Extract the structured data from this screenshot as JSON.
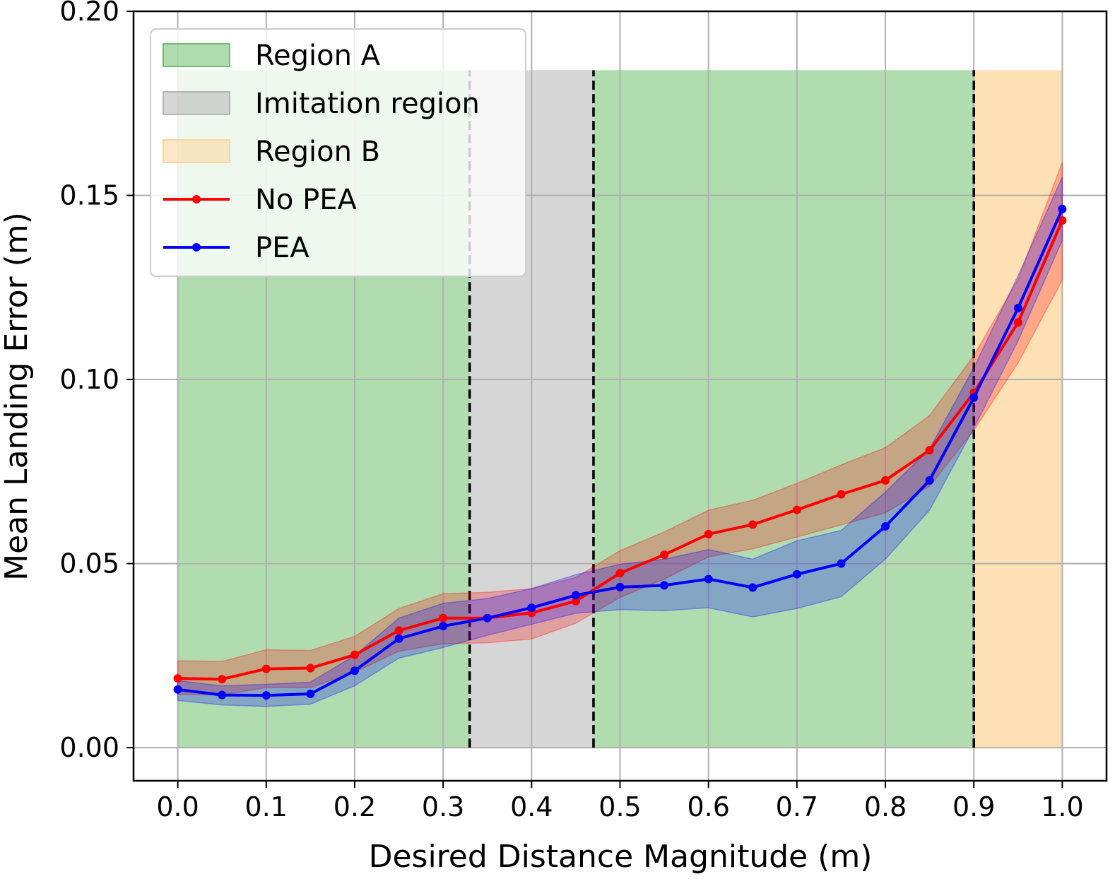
{
  "chart_data": {
    "type": "line",
    "title": "",
    "xlabel": "Desired Distance Magnitude (m)",
    "ylabel": "Mean Landing Error (m)",
    "xlim": [
      -0.05,
      1.05
    ],
    "ylim": [
      -0.009,
      0.2
    ],
    "grid": true,
    "x_ticks": [
      "0.0",
      "0.1",
      "0.2",
      "0.3",
      "0.4",
      "0.5",
      "0.6",
      "0.7",
      "0.8",
      "0.9",
      "1.0"
    ],
    "y_ticks": [
      "0.00",
      "0.05",
      "0.10",
      "0.15",
      "0.20"
    ],
    "regions": [
      {
        "name": "Region A",
        "x_start": 0.0,
        "x_end": 0.33,
        "y_top": 0.184,
        "color": "#70bf6f",
        "opacity": 0.55
      },
      {
        "name": "Imitation region",
        "x_start": 0.33,
        "x_end": 0.47,
        "y_top": 0.184,
        "color": "#b4b4b4",
        "opacity": 0.55
      },
      {
        "name": "Region A",
        "x_start": 0.47,
        "x_end": 0.9,
        "y_top": 0.184,
        "color": "#70bf6f",
        "opacity": 0.55
      },
      {
        "name": "Region B",
        "x_start": 0.9,
        "x_end": 1.0,
        "y_top": 0.184,
        "color": "#fdd59c",
        "opacity": 0.75
      }
    ],
    "dividers": [
      0.33,
      0.47,
      0.9
    ],
    "x": [
      0.0,
      0.05,
      0.1,
      0.15,
      0.2,
      0.25,
      0.3,
      0.35,
      0.4,
      0.45,
      0.5,
      0.55,
      0.6,
      0.65,
      0.7,
      0.75,
      0.8,
      0.85,
      0.9,
      0.95,
      1.0
    ],
    "series": [
      {
        "name": "No PEA",
        "color": "#ff0000",
        "values": [
          0.0188,
          0.0186,
          0.0214,
          0.0216,
          0.0252,
          0.0318,
          0.0352,
          0.0352,
          0.0366,
          0.0398,
          0.0474,
          0.0524,
          0.058,
          0.0606,
          0.0646,
          0.0688,
          0.0726,
          0.0808,
          0.0964,
          0.1155,
          0.1432
        ],
        "lower": [
          0.0145,
          0.0143,
          0.0163,
          0.0163,
          0.0205,
          0.0262,
          0.0282,
          0.0285,
          0.0295,
          0.0338,
          0.0408,
          0.0458,
          0.0518,
          0.054,
          0.0572,
          0.0605,
          0.0638,
          0.071,
          0.0862,
          0.1045,
          0.127
        ],
        "upper": [
          0.0236,
          0.0234,
          0.0266,
          0.0264,
          0.0302,
          0.0378,
          0.0418,
          0.0422,
          0.0432,
          0.0462,
          0.0535,
          0.0586,
          0.0645,
          0.0672,
          0.0718,
          0.0768,
          0.0815,
          0.0902,
          0.1065,
          0.1272,
          0.159
        ]
      },
      {
        "name": "PEA",
        "color": "#0000ff",
        "values": [
          0.0158,
          0.0143,
          0.0142,
          0.0146,
          0.0209,
          0.0296,
          0.033,
          0.0352,
          0.038,
          0.0414,
          0.0436,
          0.0441,
          0.0458,
          0.0435,
          0.0471,
          0.05,
          0.0601,
          0.0726,
          0.0951,
          0.1194,
          0.1463
        ],
        "lower": [
          0.0128,
          0.0116,
          0.0112,
          0.0118,
          0.0168,
          0.0243,
          0.0272,
          0.0305,
          0.0335,
          0.0365,
          0.0375,
          0.0372,
          0.038,
          0.0355,
          0.0378,
          0.041,
          0.0512,
          0.0645,
          0.0868,
          0.1105,
          0.1378
        ],
        "upper": [
          0.0182,
          0.0168,
          0.0172,
          0.0178,
          0.025,
          0.0352,
          0.0392,
          0.0405,
          0.0432,
          0.047,
          0.0498,
          0.0512,
          0.0538,
          0.0512,
          0.0562,
          0.059,
          0.0694,
          0.0812,
          0.1032,
          0.1282,
          0.155
        ]
      }
    ],
    "legend": {
      "location": "top-left",
      "entries": [
        {
          "label": "Region A",
          "kind": "patch",
          "color": "#70bf6f"
        },
        {
          "label": "Imitation region",
          "kind": "patch",
          "color": "#b4b4b4"
        },
        {
          "label": "Region B",
          "kind": "patch",
          "color": "#fdd59c"
        },
        {
          "label": "No PEA",
          "kind": "line",
          "color": "#ff0000"
        },
        {
          "label": "PEA",
          "kind": "line",
          "color": "#0000ff"
        }
      ]
    }
  }
}
